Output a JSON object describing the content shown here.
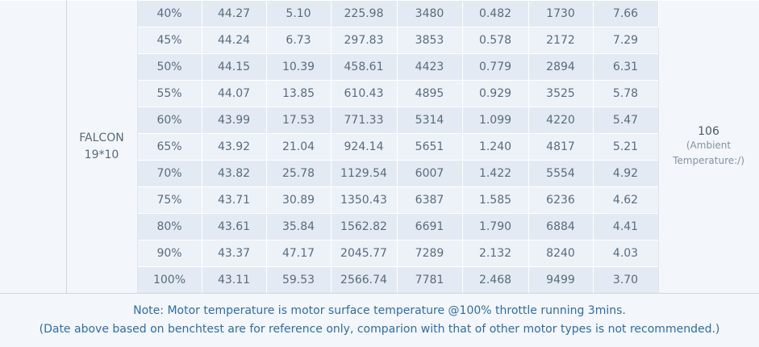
{
  "table": {
    "model": "FALCON 19*10",
    "result": "106",
    "result_note": "(Ambient Temperature:/)",
    "rows": [
      [
        "40%",
        "44.27",
        "5.10",
        "225.98",
        "3480",
        "0.482",
        "1730",
        "7.66"
      ],
      [
        "45%",
        "44.24",
        "6.73",
        "297.83",
        "3853",
        "0.578",
        "2172",
        "7.29"
      ],
      [
        "50%",
        "44.15",
        "10.39",
        "458.61",
        "4423",
        "0.779",
        "2894",
        "6.31"
      ],
      [
        "55%",
        "44.07",
        "13.85",
        "610.43",
        "4895",
        "0.929",
        "3525",
        "5.78"
      ],
      [
        "60%",
        "43.99",
        "17.53",
        "771.33",
        "5314",
        "1.099",
        "4220",
        "5.47"
      ],
      [
        "65%",
        "43.92",
        "21.04",
        "924.14",
        "5651",
        "1.240",
        "4817",
        "5.21"
      ],
      [
        "70%",
        "43.82",
        "25.78",
        "1129.54",
        "6007",
        "1.422",
        "5554",
        "4.92"
      ],
      [
        "75%",
        "43.71",
        "30.89",
        "1350.43",
        "6387",
        "1.585",
        "6236",
        "4.62"
      ],
      [
        "80%",
        "43.61",
        "35.84",
        "1562.82",
        "6691",
        "1.790",
        "6884",
        "4.41"
      ],
      [
        "90%",
        "43.37",
        "47.17",
        "2045.77",
        "7289",
        "2.132",
        "8240",
        "4.03"
      ],
      [
        "100%",
        "43.11",
        "59.53",
        "2566.74",
        "7781",
        "2.468",
        "9499",
        "3.70"
      ]
    ]
  },
  "note": {
    "line1": "Note: Motor temperature is motor surface temperature @100% throttle running 3mins.",
    "line2": "(Date above based on benchtest are for reference only, comparion with that of other motor types is not recommended.)"
  }
}
